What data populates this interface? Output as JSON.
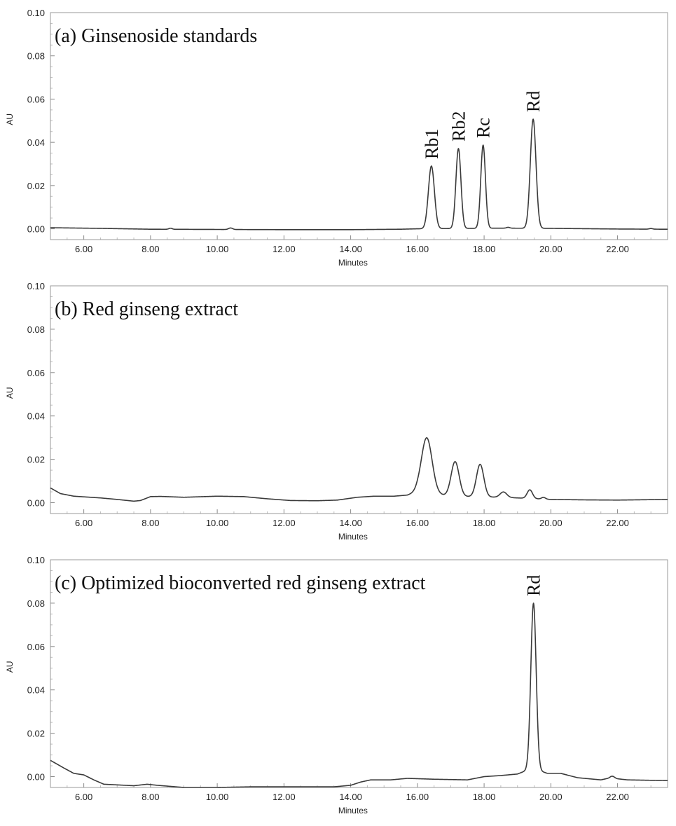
{
  "chart_data": [
    {
      "type": "line",
      "title": "(a) Ginsenoside standards",
      "xlabel": "Minutes",
      "ylabel": "AU",
      "xlim": [
        5.0,
        23.5
      ],
      "ylim": [
        -0.005,
        0.1
      ],
      "x_ticks": [
        "6.00",
        "8.00",
        "10.00",
        "12.00",
        "14.00",
        "16.00",
        "18.00",
        "20.00",
        "22.00"
      ],
      "y_ticks": [
        "0.00",
        "0.02",
        "0.04",
        "0.06",
        "0.08",
        "0.10"
      ],
      "grid": false,
      "baseline": [
        [
          5.0,
          0.0005
        ],
        [
          6.5,
          0.0002
        ],
        [
          8.0,
          -0.0002
        ],
        [
          10.0,
          -0.0003
        ],
        [
          12.0,
          -0.0004
        ],
        [
          14.0,
          -0.0004
        ],
        [
          15.5,
          -0.0002
        ],
        [
          16.0,
          0.0
        ],
        [
          18.5,
          0.0003
        ],
        [
          20.0,
          0.0002
        ],
        [
          22.0,
          -0.0001
        ],
        [
          23.5,
          -0.0002
        ]
      ],
      "peaks": [
        {
          "name": "Rb1",
          "x": 16.42,
          "height": 0.029,
          "width": 0.09
        },
        {
          "name": "Rb2",
          "x": 17.23,
          "height": 0.037,
          "width": 0.075
        },
        {
          "name": "Rc",
          "x": 17.97,
          "height": 0.0385,
          "width": 0.07
        },
        {
          "name": "Rd",
          "x": 19.47,
          "height": 0.0505,
          "width": 0.085
        },
        {
          "name": "",
          "x": 8.6,
          "height": 0.0005,
          "width": 0.05
        },
        {
          "name": "",
          "x": 10.4,
          "height": 0.0007,
          "width": 0.06
        },
        {
          "name": "",
          "x": 18.72,
          "height": 0.0004,
          "width": 0.05
        },
        {
          "name": "",
          "x": 23.0,
          "height": 0.0003,
          "width": 0.05
        }
      ],
      "peak_labels": [
        {
          "text": "Rb1",
          "x": 16.42
        },
        {
          "text": "Rb2",
          "x": 17.23
        },
        {
          "text": "Rc",
          "x": 17.97
        },
        {
          "text": "Rd",
          "x": 19.47
        }
      ]
    },
    {
      "type": "line",
      "title": "(b) Red ginseng extract",
      "xlabel": "Minutes",
      "ylabel": "AU",
      "xlim": [
        5.0,
        23.5
      ],
      "ylim": [
        -0.005,
        0.1
      ],
      "x_ticks": [
        "6.00",
        "8.00",
        "10.00",
        "12.00",
        "14.00",
        "16.00",
        "18.00",
        "20.00",
        "22.00"
      ],
      "y_ticks": [
        "0.00",
        "0.02",
        "0.04",
        "0.06",
        "0.08",
        "0.10"
      ],
      "grid": false,
      "baseline": [
        [
          5.0,
          0.0068
        ],
        [
          5.3,
          0.0042
        ],
        [
          5.7,
          0.003
        ],
        [
          6.5,
          0.0022
        ],
        [
          7.0,
          0.0015
        ],
        [
          7.5,
          0.0007
        ],
        [
          7.7,
          0.001
        ],
        [
          8.0,
          0.0028
        ],
        [
          8.3,
          0.0029
        ],
        [
          9.0,
          0.0025
        ],
        [
          10.0,
          0.003
        ],
        [
          10.8,
          0.0028
        ],
        [
          11.5,
          0.0018
        ],
        [
          12.2,
          0.001
        ],
        [
          13.0,
          0.0009
        ],
        [
          13.6,
          0.0012
        ],
        [
          14.2,
          0.0025
        ],
        [
          14.7,
          0.003
        ],
        [
          15.3,
          0.003
        ],
        [
          15.7,
          0.0035
        ],
        [
          16.0,
          0.005
        ],
        [
          17.0,
          0.003
        ],
        [
          18.5,
          0.0025
        ],
        [
          19.0,
          0.0022
        ],
        [
          20.0,
          0.0015
        ],
        [
          21.0,
          0.0013
        ],
        [
          22.0,
          0.0012
        ],
        [
          23.5,
          0.0015
        ]
      ],
      "peaks": [
        {
          "name": "",
          "x": 16.28,
          "height": 0.0255,
          "width": 0.16
        },
        {
          "name": "",
          "x": 17.13,
          "height": 0.016,
          "width": 0.12
        },
        {
          "name": "",
          "x": 17.88,
          "height": 0.015,
          "width": 0.11
        },
        {
          "name": "",
          "x": 18.58,
          "height": 0.0025,
          "width": 0.1
        },
        {
          "name": "",
          "x": 19.37,
          "height": 0.004,
          "width": 0.08
        },
        {
          "name": "",
          "x": 19.78,
          "height": 0.0008,
          "width": 0.06
        }
      ],
      "peak_labels": []
    },
    {
      "type": "line",
      "title": "(c) Optimized bioconverted red ginseng extract",
      "xlabel": "Minutes",
      "ylabel": "AU",
      "xlim": [
        5.0,
        23.5
      ],
      "ylim": [
        -0.005,
        0.1
      ],
      "x_ticks": [
        "6.00",
        "8.00",
        "10.00",
        "12.00",
        "14.00",
        "16.00",
        "18.00",
        "20.00",
        "22.00"
      ],
      "y_ticks": [
        "0.00",
        "0.02",
        "0.04",
        "0.06",
        "0.08",
        "0.10"
      ],
      "grid": false,
      "baseline": [
        [
          5.0,
          0.0075
        ],
        [
          5.4,
          0.004
        ],
        [
          5.7,
          0.0015
        ],
        [
          6.0,
          0.0008
        ],
        [
          6.3,
          -0.0015
        ],
        [
          6.6,
          -0.0035
        ],
        [
          7.5,
          -0.0042
        ],
        [
          7.9,
          -0.0035
        ],
        [
          8.2,
          -0.004
        ],
        [
          9.0,
          -0.005
        ],
        [
          10.0,
          -0.005
        ],
        [
          11.0,
          -0.0047
        ],
        [
          12.0,
          -0.0047
        ],
        [
          13.5,
          -0.0047
        ],
        [
          14.0,
          -0.004
        ],
        [
          14.3,
          -0.0025
        ],
        [
          14.6,
          -0.0015
        ],
        [
          15.2,
          -0.0015
        ],
        [
          15.7,
          -0.0008
        ],
        [
          16.5,
          -0.0012
        ],
        [
          17.5,
          -0.0015
        ],
        [
          18.0,
          0.0
        ],
        [
          18.5,
          0.0005
        ],
        [
          19.0,
          0.0012
        ],
        [
          19.3,
          0.003
        ],
        [
          19.6,
          0.003
        ],
        [
          19.9,
          0.0015
        ],
        [
          20.3,
          0.0015
        ],
        [
          20.8,
          -0.0005
        ],
        [
          21.5,
          -0.0015
        ],
        [
          21.8,
          -0.0005
        ],
        [
          22.0,
          -0.001
        ],
        [
          22.3,
          -0.0015
        ],
        [
          23.0,
          -0.0017
        ],
        [
          23.5,
          -0.0018
        ]
      ],
      "peaks": [
        {
          "name": "Rd",
          "x": 19.48,
          "height": 0.077,
          "width": 0.08
        },
        {
          "name": "",
          "x": 21.85,
          "height": 0.0008,
          "width": 0.06
        }
      ],
      "peak_labels": [
        {
          "text": "Rd",
          "x": 19.48
        }
      ]
    }
  ]
}
